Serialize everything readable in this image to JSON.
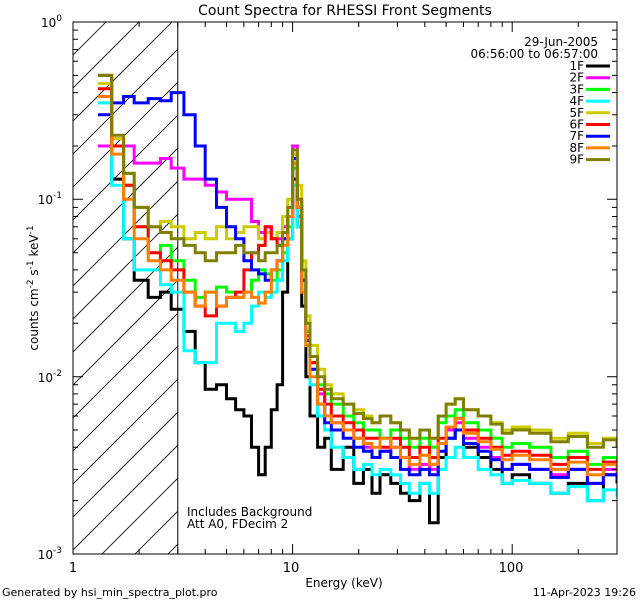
{
  "chart_data": {
    "type": "line",
    "title": "Count Spectra for RHESSI Front Segments",
    "xlabel": "Energy (keV)",
    "ylabel": "counts cm",
    "ylabel_sup1": "-2",
    "ylabel_mid": " s",
    "ylabel_sup2": "-1",
    "ylabel_end": " keV",
    "ylabel_sup3": "-1",
    "x_scale": "log",
    "y_scale": "log",
    "xlim": [
      1,
      300
    ],
    "ylim": [
      0.001,
      1
    ],
    "x_tick_labels": [
      {
        "value": 1,
        "label": "1"
      },
      {
        "value": 10,
        "label": "10"
      },
      {
        "value": 100,
        "label": "100"
      }
    ],
    "y_tick_labels": [
      {
        "value": 1,
        "base": "10",
        "exp": "0"
      },
      {
        "value": 0.1,
        "base": "10",
        "exp": "-1"
      },
      {
        "value": 0.01,
        "base": "10",
        "exp": "-2"
      },
      {
        "value": 0.001,
        "base": "10",
        "exp": "-3"
      }
    ],
    "date": "29-Jun-2005",
    "time_range": "06:56:00 to 06:57:00",
    "annotation_lines": [
      "Includes Background",
      "Att A0, FDecim 2"
    ],
    "shaded_region_xmax": 3,
    "footer_left": "Generated by hsi_min_spectra_plot.pro",
    "footer_right": "11-Apr-2023 19:26",
    "series": [
      {
        "name": "1F",
        "color": "#000000",
        "x": [
          1.3,
          1.5,
          1.7,
          1.9,
          2.2,
          2.5,
          2.8,
          3.2,
          3.6,
          4.0,
          4.5,
          5.0,
          5.5,
          6.0,
          6.5,
          7.0,
          7.5,
          8.0,
          8.5,
          9.0,
          9.5,
          10.0,
          10.5,
          11.0,
          11.5,
          12,
          13,
          14,
          15,
          17,
          19,
          21,
          23,
          25,
          28,
          31,
          34,
          38,
          42,
          46,
          50,
          55,
          60,
          70,
          80,
          90,
          100,
          120,
          150,
          180,
          220,
          260,
          300
        ],
        "y": [
          0.5,
          0.13,
          0.06,
          0.035,
          0.028,
          0.03,
          0.024,
          0.018,
          0.012,
          0.0085,
          0.009,
          0.0075,
          0.0065,
          0.006,
          0.004,
          0.0028,
          0.004,
          0.0065,
          0.009,
          0.03,
          0.06,
          0.13,
          0.07,
          0.025,
          0.01,
          0.006,
          0.004,
          0.0045,
          0.003,
          0.004,
          0.0025,
          0.003,
          0.0022,
          0.0028,
          0.0025,
          0.0022,
          0.002,
          0.0025,
          0.0015,
          0.0035,
          0.0045,
          0.005,
          0.004,
          0.0035,
          0.003,
          0.0025,
          0.0028,
          0.0025,
          0.0022,
          0.0025,
          0.002,
          0.0028,
          0.0025
        ]
      },
      {
        "name": "2F",
        "color": "#ff00ff",
        "x": [
          1.3,
          1.5,
          1.7,
          1.9,
          2.2,
          2.5,
          2.8,
          3.2,
          3.6,
          4.0,
          4.5,
          5.0,
          5.5,
          6.0,
          6.5,
          7.0,
          7.5,
          8.0,
          8.5,
          9.0,
          9.5,
          10.0,
          10.5,
          11.0,
          11.5,
          12,
          13,
          14,
          15,
          17,
          19,
          21,
          23,
          25,
          28,
          31,
          34,
          38,
          42,
          46,
          50,
          55,
          60,
          70,
          80,
          90,
          100,
          120,
          150,
          180,
          220,
          260,
          300
        ],
        "y": [
          0.2,
          0.22,
          0.2,
          0.16,
          0.16,
          0.17,
          0.15,
          0.13,
          0.13,
          0.12,
          0.11,
          0.1,
          0.1,
          0.1,
          0.075,
          0.065,
          0.07,
          0.06,
          0.06,
          0.07,
          0.08,
          0.2,
          0.08,
          0.03,
          0.018,
          0.012,
          0.008,
          0.006,
          0.0055,
          0.005,
          0.0045,
          0.004,
          0.0035,
          0.0038,
          0.004,
          0.0035,
          0.003,
          0.0032,
          0.003,
          0.0042,
          0.005,
          0.0055,
          0.0045,
          0.004,
          0.0035,
          0.003,
          0.0032,
          0.003,
          0.0028,
          0.003,
          0.0025,
          0.003,
          0.0028
        ]
      },
      {
        "name": "3F",
        "color": "#00ff00",
        "x": [
          1.3,
          1.5,
          1.7,
          1.9,
          2.2,
          2.5,
          2.8,
          3.2,
          3.6,
          4.0,
          4.5,
          5.0,
          5.5,
          6.0,
          6.5,
          7.0,
          7.5,
          8.0,
          8.5,
          9.0,
          9.5,
          10.0,
          10.5,
          11.0,
          11.5,
          12,
          13,
          14,
          15,
          17,
          19,
          21,
          23,
          25,
          28,
          31,
          34,
          38,
          42,
          46,
          50,
          55,
          60,
          70,
          80,
          90,
          100,
          120,
          150,
          180,
          220,
          260,
          300
        ],
        "y": [
          0.45,
          0.2,
          0.12,
          0.07,
          0.05,
          0.055,
          0.045,
          0.035,
          0.028,
          0.03,
          0.032,
          0.03,
          0.028,
          0.03,
          0.035,
          0.04,
          0.038,
          0.035,
          0.04,
          0.05,
          0.07,
          0.15,
          0.1,
          0.04,
          0.018,
          0.012,
          0.009,
          0.008,
          0.007,
          0.006,
          0.0055,
          0.005,
          0.005,
          0.0045,
          0.005,
          0.0045,
          0.004,
          0.0045,
          0.004,
          0.0055,
          0.006,
          0.0065,
          0.0055,
          0.005,
          0.0045,
          0.004,
          0.0042,
          0.004,
          0.0035,
          0.0038,
          0.0032,
          0.0035,
          0.0032
        ]
      },
      {
        "name": "4F",
        "color": "#00ffff",
        "x": [
          1.3,
          1.5,
          1.7,
          1.9,
          2.2,
          2.5,
          2.8,
          3.2,
          3.6,
          4.0,
          4.5,
          5.0,
          5.5,
          6.0,
          6.5,
          7.0,
          7.5,
          8.0,
          8.5,
          9.0,
          9.5,
          10.0,
          10.5,
          11.0,
          11.5,
          12,
          13,
          14,
          15,
          17,
          19,
          21,
          23,
          25,
          28,
          31,
          34,
          38,
          42,
          46,
          50,
          55,
          60,
          70,
          80,
          90,
          100,
          120,
          150,
          180,
          220,
          260,
          300
        ],
        "y": [
          0.35,
          0.12,
          0.06,
          0.04,
          0.04,
          0.033,
          0.03,
          0.014,
          0.012,
          0.012,
          0.02,
          0.02,
          0.018,
          0.02,
          0.025,
          0.03,
          0.028,
          0.03,
          0.035,
          0.045,
          0.06,
          0.12,
          0.07,
          0.03,
          0.015,
          0.009,
          0.006,
          0.005,
          0.004,
          0.0035,
          0.003,
          0.0032,
          0.0028,
          0.003,
          0.0028,
          0.0025,
          0.0022,
          0.0025,
          0.0022,
          0.003,
          0.0035,
          0.004,
          0.0035,
          0.003,
          0.0028,
          0.0025,
          0.0026,
          0.0025,
          0.0022,
          0.0024,
          0.002,
          0.0023,
          0.0021
        ]
      },
      {
        "name": "5F",
        "color": "#cccc00",
        "x": [
          1.3,
          1.5,
          1.7,
          1.9,
          2.2,
          2.5,
          2.8,
          3.2,
          3.6,
          4.0,
          4.5,
          5.0,
          5.5,
          6.0,
          6.5,
          7.0,
          7.5,
          8.0,
          8.5,
          9.0,
          9.5,
          10.0,
          10.5,
          11.0,
          11.5,
          12,
          13,
          14,
          15,
          17,
          19,
          21,
          23,
          25,
          28,
          31,
          34,
          38,
          42,
          46,
          50,
          55,
          60,
          70,
          80,
          90,
          100,
          120,
          150,
          180,
          220,
          260,
          300
        ],
        "y": [
          0.45,
          0.22,
          0.14,
          0.09,
          0.07,
          0.075,
          0.07,
          0.06,
          0.065,
          0.06,
          0.07,
          0.06,
          0.065,
          0.07,
          0.07,
          0.06,
          0.065,
          0.06,
          0.065,
          0.08,
          0.1,
          0.18,
          0.12,
          0.045,
          0.022,
          0.015,
          0.011,
          0.009,
          0.008,
          0.007,
          0.0065,
          0.006,
          0.0055,
          0.006,
          0.0055,
          0.005,
          0.0045,
          0.005,
          0.0045,
          0.006,
          0.007,
          0.0075,
          0.0065,
          0.006,
          0.0055,
          0.005,
          0.0052,
          0.005,
          0.0045,
          0.0048,
          0.0042,
          0.0045,
          0.004
        ]
      },
      {
        "name": "6F",
        "color": "#ff0000",
        "x": [
          1.3,
          1.5,
          1.7,
          1.9,
          2.2,
          2.5,
          2.8,
          3.2,
          3.6,
          4.0,
          4.5,
          5.0,
          5.5,
          6.0,
          6.5,
          7.0,
          7.5,
          8.0,
          8.5,
          9.0,
          9.5,
          10.0,
          10.5,
          11.0,
          11.5,
          12,
          13,
          14,
          15,
          17,
          19,
          21,
          23,
          25,
          28,
          31,
          34,
          38,
          42,
          46,
          50,
          55,
          60,
          70,
          80,
          90,
          100,
          120,
          150,
          180,
          220,
          260,
          300
        ],
        "y": [
          0.42,
          0.2,
          0.12,
          0.07,
          0.05,
          0.045,
          0.04,
          0.03,
          0.025,
          0.022,
          0.025,
          0.028,
          0.03,
          0.04,
          0.05,
          0.055,
          0.07,
          0.06,
          0.055,
          0.06,
          0.08,
          0.16,
          0.09,
          0.035,
          0.017,
          0.012,
          0.0085,
          0.007,
          0.006,
          0.0055,
          0.005,
          0.0045,
          0.0045,
          0.004,
          0.0045,
          0.004,
          0.0035,
          0.004,
          0.0035,
          0.0045,
          0.0052,
          0.0058,
          0.005,
          0.0045,
          0.004,
          0.0036,
          0.0038,
          0.0036,
          0.0032,
          0.0035,
          0.003,
          0.0033,
          0.003
        ]
      },
      {
        "name": "7F",
        "color": "#0000ff",
        "x": [
          1.3,
          1.5,
          1.7,
          1.9,
          2.2,
          2.5,
          2.8,
          3.2,
          3.6,
          4.0,
          4.5,
          5.0,
          5.5,
          6.0,
          6.5,
          7.0,
          7.5,
          8.0,
          8.5,
          9.0,
          9.5,
          10.0,
          10.5,
          11.0,
          11.5,
          12,
          13,
          14,
          15,
          17,
          19,
          21,
          23,
          25,
          28,
          31,
          34,
          38,
          42,
          46,
          50,
          55,
          60,
          70,
          80,
          90,
          100,
          120,
          150,
          180,
          220,
          260,
          300
        ],
        "y": [
          0.3,
          0.35,
          0.38,
          0.35,
          0.37,
          0.36,
          0.4,
          0.3,
          0.2,
          0.13,
          0.09,
          0.07,
          0.06,
          0.045,
          0.04,
          0.038,
          0.035,
          0.04,
          0.045,
          0.06,
          0.08,
          0.17,
          0.09,
          0.035,
          0.016,
          0.011,
          0.007,
          0.0055,
          0.005,
          0.0045,
          0.004,
          0.0038,
          0.0035,
          0.0038,
          0.0035,
          0.003,
          0.0028,
          0.003,
          0.0028,
          0.0038,
          0.0045,
          0.005,
          0.0042,
          0.0038,
          0.0034,
          0.003,
          0.0032,
          0.003,
          0.0027,
          0.003,
          0.0025,
          0.0028,
          0.0026
        ]
      },
      {
        "name": "8F",
        "color": "#ff8000",
        "x": [
          1.3,
          1.5,
          1.7,
          1.9,
          2.2,
          2.5,
          2.8,
          3.2,
          3.6,
          4.0,
          4.5,
          5.0,
          5.5,
          6.0,
          6.5,
          7.0,
          7.5,
          8.0,
          8.5,
          9.0,
          9.5,
          10.0,
          10.5,
          11.0,
          11.5,
          12,
          13,
          14,
          15,
          17,
          19,
          21,
          23,
          25,
          28,
          31,
          34,
          38,
          42,
          46,
          50,
          55,
          60,
          70,
          80,
          90,
          100,
          120,
          150,
          180,
          220,
          260,
          300
        ],
        "y": [
          0.38,
          0.18,
          0.1,
          0.06,
          0.045,
          0.04,
          0.035,
          0.03,
          0.025,
          0.03,
          0.025,
          0.028,
          0.028,
          0.03,
          0.028,
          0.026,
          0.03,
          0.04,
          0.045,
          0.055,
          0.08,
          0.16,
          0.09,
          0.03,
          0.015,
          0.01,
          0.007,
          0.006,
          0.0055,
          0.005,
          0.0045,
          0.0042,
          0.004,
          0.0045,
          0.004,
          0.0035,
          0.0032,
          0.0036,
          0.0032,
          0.0042,
          0.0052,
          0.0058,
          0.0048,
          0.0043,
          0.0039,
          0.0034,
          0.0036,
          0.0034,
          0.003,
          0.0033,
          0.0028,
          0.0032,
          0.0029
        ]
      },
      {
        "name": "9F",
        "color": "#808000",
        "x": [
          1.3,
          1.5,
          1.7,
          1.9,
          2.2,
          2.5,
          2.8,
          3.2,
          3.6,
          4.0,
          4.5,
          5.0,
          5.5,
          6.0,
          6.5,
          7.0,
          7.5,
          8.0,
          8.5,
          9.0,
          9.5,
          10.0,
          10.5,
          11.0,
          11.5,
          12,
          13,
          14,
          15,
          17,
          19,
          21,
          23,
          25,
          28,
          31,
          34,
          38,
          42,
          46,
          50,
          55,
          60,
          70,
          80,
          90,
          100,
          120,
          150,
          180,
          220,
          260,
          300
        ],
        "y": [
          0.5,
          0.23,
          0.14,
          0.09,
          0.07,
          0.065,
          0.06,
          0.055,
          0.05,
          0.045,
          0.05,
          0.05,
          0.055,
          0.05,
          0.05,
          0.045,
          0.05,
          0.05,
          0.055,
          0.065,
          0.09,
          0.19,
          0.1,
          0.04,
          0.02,
          0.013,
          0.01,
          0.0085,
          0.0075,
          0.007,
          0.0062,
          0.0058,
          0.0055,
          0.006,
          0.0055,
          0.005,
          0.0045,
          0.005,
          0.0045,
          0.006,
          0.007,
          0.0075,
          0.0065,
          0.006,
          0.0054,
          0.0048,
          0.005,
          0.0048,
          0.0043,
          0.0046,
          0.004,
          0.0044,
          0.004
        ]
      }
    ]
  }
}
